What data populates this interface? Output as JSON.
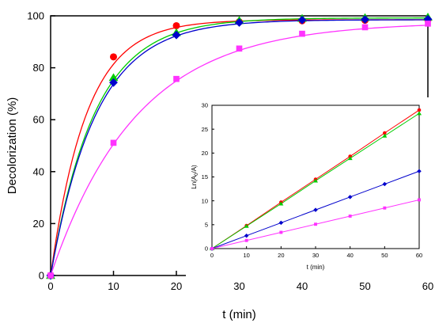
{
  "chart_data": [
    {
      "id": "main",
      "type": "scatter",
      "title": "",
      "xlabel": "t (min)",
      "ylabel": "Decolorization (%)",
      "xlim": [
        0,
        60
      ],
      "ylim": [
        0,
        100
      ],
      "xticks": [
        0,
        10,
        20,
        30,
        40,
        50,
        60
      ],
      "yticks": [
        0,
        20,
        40,
        60,
        80,
        100
      ],
      "grid": false,
      "series": [
        {
          "color": "#ff0000",
          "marker": "circle",
          "fit_k": 0.175,
          "fit_max": 98.5,
          "x": [
            0,
            10,
            20,
            30,
            40,
            50,
            60
          ],
          "y": [
            0,
            84.2,
            96.2,
            97.7,
            98.1,
            98.3,
            98.4
          ]
        },
        {
          "color": "#00cc00",
          "marker": "triangle",
          "fit_k": 0.142,
          "fit_max": 99.2,
          "x": [
            0,
            10,
            20,
            30,
            40,
            50,
            60
          ],
          "y": [
            0,
            76.2,
            93.5,
            98.2,
            99.0,
            99.3,
            99.5
          ]
        },
        {
          "color": "#0000cc",
          "marker": "diamond",
          "fit_k": 0.138,
          "fit_max": 98.5,
          "x": [
            0,
            10,
            20,
            30,
            40,
            50,
            60
          ],
          "y": [
            0,
            74.3,
            92.6,
            97.4,
            98.4,
            98.6,
            98.7
          ]
        },
        {
          "color": "#ff33ff",
          "marker": "square",
          "fit_k": 0.073,
          "fit_max": 97.6,
          "x": [
            0,
            10,
            20,
            30,
            40,
            50,
            60
          ],
          "y": [
            0,
            51.1,
            75.7,
            87.4,
            93.1,
            95.6,
            97.0
          ]
        }
      ]
    },
    {
      "id": "inset",
      "type": "line",
      "title": "",
      "xlabel": "t (min)",
      "ylabel": "Ln(A",
      "ylabel_sub": "0",
      "ylabel_tail": "/A)",
      "xlim": [
        0,
        60
      ],
      "ylim": [
        0,
        30
      ],
      "xticks": [
        0,
        10,
        20,
        30,
        40,
        50,
        60
      ],
      "yticks": [
        0,
        5,
        10,
        15,
        20,
        25,
        30
      ],
      "grid": false,
      "series": [
        {
          "color": "#ff0000",
          "marker": "circle",
          "x": [
            0,
            10,
            20,
            30,
            40,
            50,
            60
          ],
          "y": [
            0,
            4.8,
            9.7,
            14.5,
            19.3,
            24.2,
            29.0
          ]
        },
        {
          "color": "#00cc00",
          "marker": "triangle",
          "x": [
            0,
            10,
            20,
            30,
            40,
            50,
            60
          ],
          "y": [
            0,
            4.7,
            9.4,
            14.2,
            18.9,
            23.6,
            28.3
          ]
        },
        {
          "color": "#0000cc",
          "marker": "diamond",
          "x": [
            0,
            10,
            20,
            30,
            40,
            50,
            60
          ],
          "y": [
            0,
            2.7,
            5.4,
            8.1,
            10.8,
            13.5,
            16.2
          ]
        },
        {
          "color": "#ff33ff",
          "marker": "square",
          "x": [
            0,
            10,
            20,
            30,
            40,
            50,
            60
          ],
          "y": [
            0,
            1.7,
            3.4,
            5.1,
            6.8,
            8.5,
            10.2
          ]
        }
      ]
    }
  ]
}
